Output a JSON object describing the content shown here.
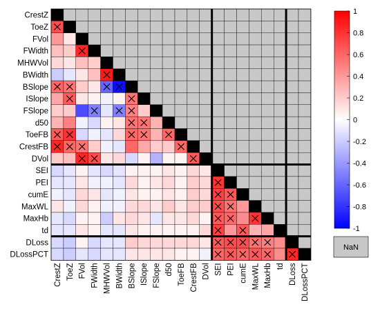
{
  "chart_data": {
    "type": "heatmap",
    "variables": [
      "CrestZ",
      "ToeZ",
      "FVol",
      "FWidth",
      "MHWVol",
      "BWidth",
      "BSlope",
      "ISlope",
      "FSlope",
      "d50",
      "ToeFB",
      "CrestFB",
      "DVol",
      "SEI",
      "PEI",
      "cumE",
      "MaxWL",
      "MaxHb",
      "td",
      "DLoss",
      "DLossPCT"
    ],
    "group_breaks_after": [
      "DVol",
      "td"
    ],
    "values": [
      [
        1,
        null,
        null,
        null,
        null,
        null,
        null,
        null,
        null,
        null,
        null,
        null,
        null,
        null,
        null,
        null,
        null,
        null,
        null,
        null,
        null
      ],
      [
        0.7,
        1,
        null,
        null,
        null,
        null,
        null,
        null,
        null,
        null,
        null,
        null,
        null,
        null,
        null,
        null,
        null,
        null,
        null,
        null,
        null
      ],
      [
        0.4,
        0.1,
        1,
        null,
        null,
        null,
        null,
        null,
        null,
        null,
        null,
        null,
        null,
        null,
        null,
        null,
        null,
        null,
        null,
        null,
        null
      ],
      [
        0.25,
        0.2,
        0.85,
        1,
        null,
        null,
        null,
        null,
        null,
        null,
        null,
        null,
        null,
        null,
        null,
        null,
        null,
        null,
        null,
        null,
        null
      ],
      [
        0.15,
        0.1,
        0.25,
        0.2,
        1,
        null,
        null,
        null,
        null,
        null,
        null,
        null,
        null,
        null,
        null,
        null,
        null,
        null,
        null,
        null,
        null
      ],
      [
        -0.2,
        -0.1,
        0.1,
        0.25,
        0.9,
        1,
        null,
        null,
        null,
        null,
        null,
        null,
        null,
        null,
        null,
        null,
        null,
        null,
        null,
        null,
        null
      ],
      [
        0.6,
        0.55,
        0.2,
        0.1,
        -0.6,
        -0.95,
        1,
        null,
        null,
        null,
        null,
        null,
        null,
        null,
        null,
        null,
        null,
        null,
        null,
        null,
        null
      ],
      [
        0.35,
        0.65,
        0.1,
        0.05,
        -0.05,
        0.05,
        0.55,
        1,
        null,
        null,
        null,
        null,
        null,
        null,
        null,
        null,
        null,
        null,
        null,
        null,
        null
      ],
      [
        0.2,
        0.2,
        -0.7,
        -0.5,
        -0.1,
        -0.5,
        0.5,
        0.2,
        1,
        null,
        null,
        null,
        null,
        null,
        null,
        null,
        null,
        null,
        null,
        null,
        null
      ],
      [
        0.3,
        0.5,
        -0.05,
        -0.15,
        0.05,
        0.1,
        0.55,
        0.55,
        0.3,
        1,
        null,
        null,
        null,
        null,
        null,
        null,
        null,
        null,
        null,
        null,
        null
      ],
      [
        0.65,
        0.8,
        -0.15,
        -0.05,
        -0.1,
        0.15,
        0.6,
        0.55,
        0.3,
        0.6,
        1,
        null,
        null,
        null,
        null,
        null,
        null,
        null,
        null,
        null,
        null
      ],
      [
        0.85,
        0.6,
        0.55,
        0.2,
        -0.05,
        -0.1,
        0.6,
        0.35,
        0.2,
        0.2,
        0.6,
        1,
        null,
        null,
        null,
        null,
        null,
        null,
        null,
        null,
        null
      ],
      [
        0.2,
        0.25,
        0.85,
        0.7,
        0.1,
        0.15,
        -0.15,
        0.05,
        -0.3,
        0.05,
        0.05,
        0.65,
        1,
        null,
        null,
        null,
        null,
        null,
        null,
        null,
        null
      ],
      [
        -0.15,
        -0.1,
        0.05,
        -0.1,
        -0.15,
        -0.1,
        0.05,
        0.05,
        0.05,
        0.1,
        0.05,
        0.15,
        0.1,
        1,
        null,
        null,
        null,
        null,
        null,
        null,
        null
      ],
      [
        -0.1,
        -0.1,
        0.1,
        -0.05,
        -0.05,
        -0.1,
        0.15,
        0.05,
        0.1,
        0.15,
        0.05,
        0.2,
        0.15,
        0.8,
        1,
        null,
        null,
        null,
        null,
        null,
        null
      ],
      [
        -0.05,
        -0.1,
        0.15,
        0.1,
        -0.1,
        -0.05,
        0.1,
        0.05,
        0.05,
        0.1,
        0.05,
        0.2,
        0.15,
        0.75,
        0.65,
        1,
        null,
        null,
        null,
        null,
        null
      ],
      [
        0.1,
        -0.05,
        0.15,
        0.05,
        -0.05,
        -0.05,
        0.15,
        0.15,
        0.1,
        0.2,
        0.1,
        0.2,
        0.2,
        0.7,
        0.55,
        0.4,
        1,
        null,
        null,
        null,
        null
      ],
      [
        -0.1,
        -0.15,
        0.05,
        0.05,
        -0.2,
        0.1,
        0.15,
        0.1,
        -0.1,
        0.1,
        0.1,
        0.15,
        0.05,
        0.65,
        0.6,
        0.45,
        0.8,
        1,
        null,
        null,
        null
      ],
      [
        -0.1,
        -0.1,
        0.1,
        0.05,
        -0.1,
        -0.1,
        0.1,
        0.05,
        0.05,
        0.05,
        0.05,
        0.05,
        0.15,
        0.75,
        0.4,
        0.65,
        0.3,
        0.35,
        1,
        null,
        null
      ],
      [
        -0.15,
        -0.2,
        0.05,
        -0.15,
        -0.1,
        -0.1,
        0.2,
        0.15,
        0.15,
        0.15,
        0.15,
        0.15,
        0.1,
        0.65,
        0.7,
        0.7,
        0.55,
        0.5,
        0.45,
        1,
        null
      ],
      [
        -0.15,
        -0.2,
        -0.1,
        -0.15,
        -0.1,
        -0.1,
        0.1,
        0.1,
        0.1,
        0.1,
        0.05,
        0.05,
        -0.05,
        0.6,
        0.65,
        0.6,
        0.65,
        0.6,
        0.45,
        0.85,
        1
      ]
    ],
    "significant": [
      [
        1,
        0
      ],
      [
        6,
        0
      ],
      [
        6,
        1
      ],
      [
        7,
        1
      ],
      [
        10,
        0
      ],
      [
        10,
        1
      ],
      [
        11,
        0
      ],
      [
        11,
        1
      ],
      [
        3,
        2
      ],
      [
        11,
        2
      ],
      [
        12,
        2
      ],
      [
        12,
        3
      ],
      [
        5,
        4
      ],
      [
        6,
        4
      ],
      [
        6,
        5
      ],
      [
        8,
        5
      ],
      [
        8,
        3
      ],
      [
        7,
        6
      ],
      [
        8,
        6
      ],
      [
        9,
        6
      ],
      [
        9,
        7
      ],
      [
        10,
        6
      ],
      [
        10,
        7
      ],
      [
        10,
        9
      ],
      [
        11,
        10
      ],
      [
        12,
        11
      ],
      [
        14,
        13
      ],
      [
        15,
        13
      ],
      [
        15,
        14
      ],
      [
        16,
        13
      ],
      [
        16,
        14
      ],
      [
        17,
        13
      ],
      [
        17,
        14
      ],
      [
        17,
        16
      ],
      [
        18,
        13
      ],
      [
        18,
        15
      ],
      [
        19,
        13
      ],
      [
        19,
        14
      ],
      [
        19,
        15
      ],
      [
        19,
        16
      ],
      [
        19,
        17
      ],
      [
        20,
        13
      ],
      [
        20,
        14
      ],
      [
        20,
        15
      ],
      [
        20,
        16
      ],
      [
        20,
        17
      ],
      [
        20,
        19
      ]
    ],
    "colorbar": {
      "range": [
        -1,
        1
      ],
      "ticks": [
        "1",
        "0.8",
        "0.6",
        "0.4",
        "0.2",
        "0",
        "-0.2",
        "-0.4",
        "-0.6",
        "-0.8",
        "-1"
      ]
    },
    "nan_label": "NaN",
    "colors": {
      "positive": "#ff0000",
      "negative": "#0000ff",
      "neutral": "#ffffff",
      "nan": "#c8c8c8",
      "diagonal": "#000000"
    }
  }
}
